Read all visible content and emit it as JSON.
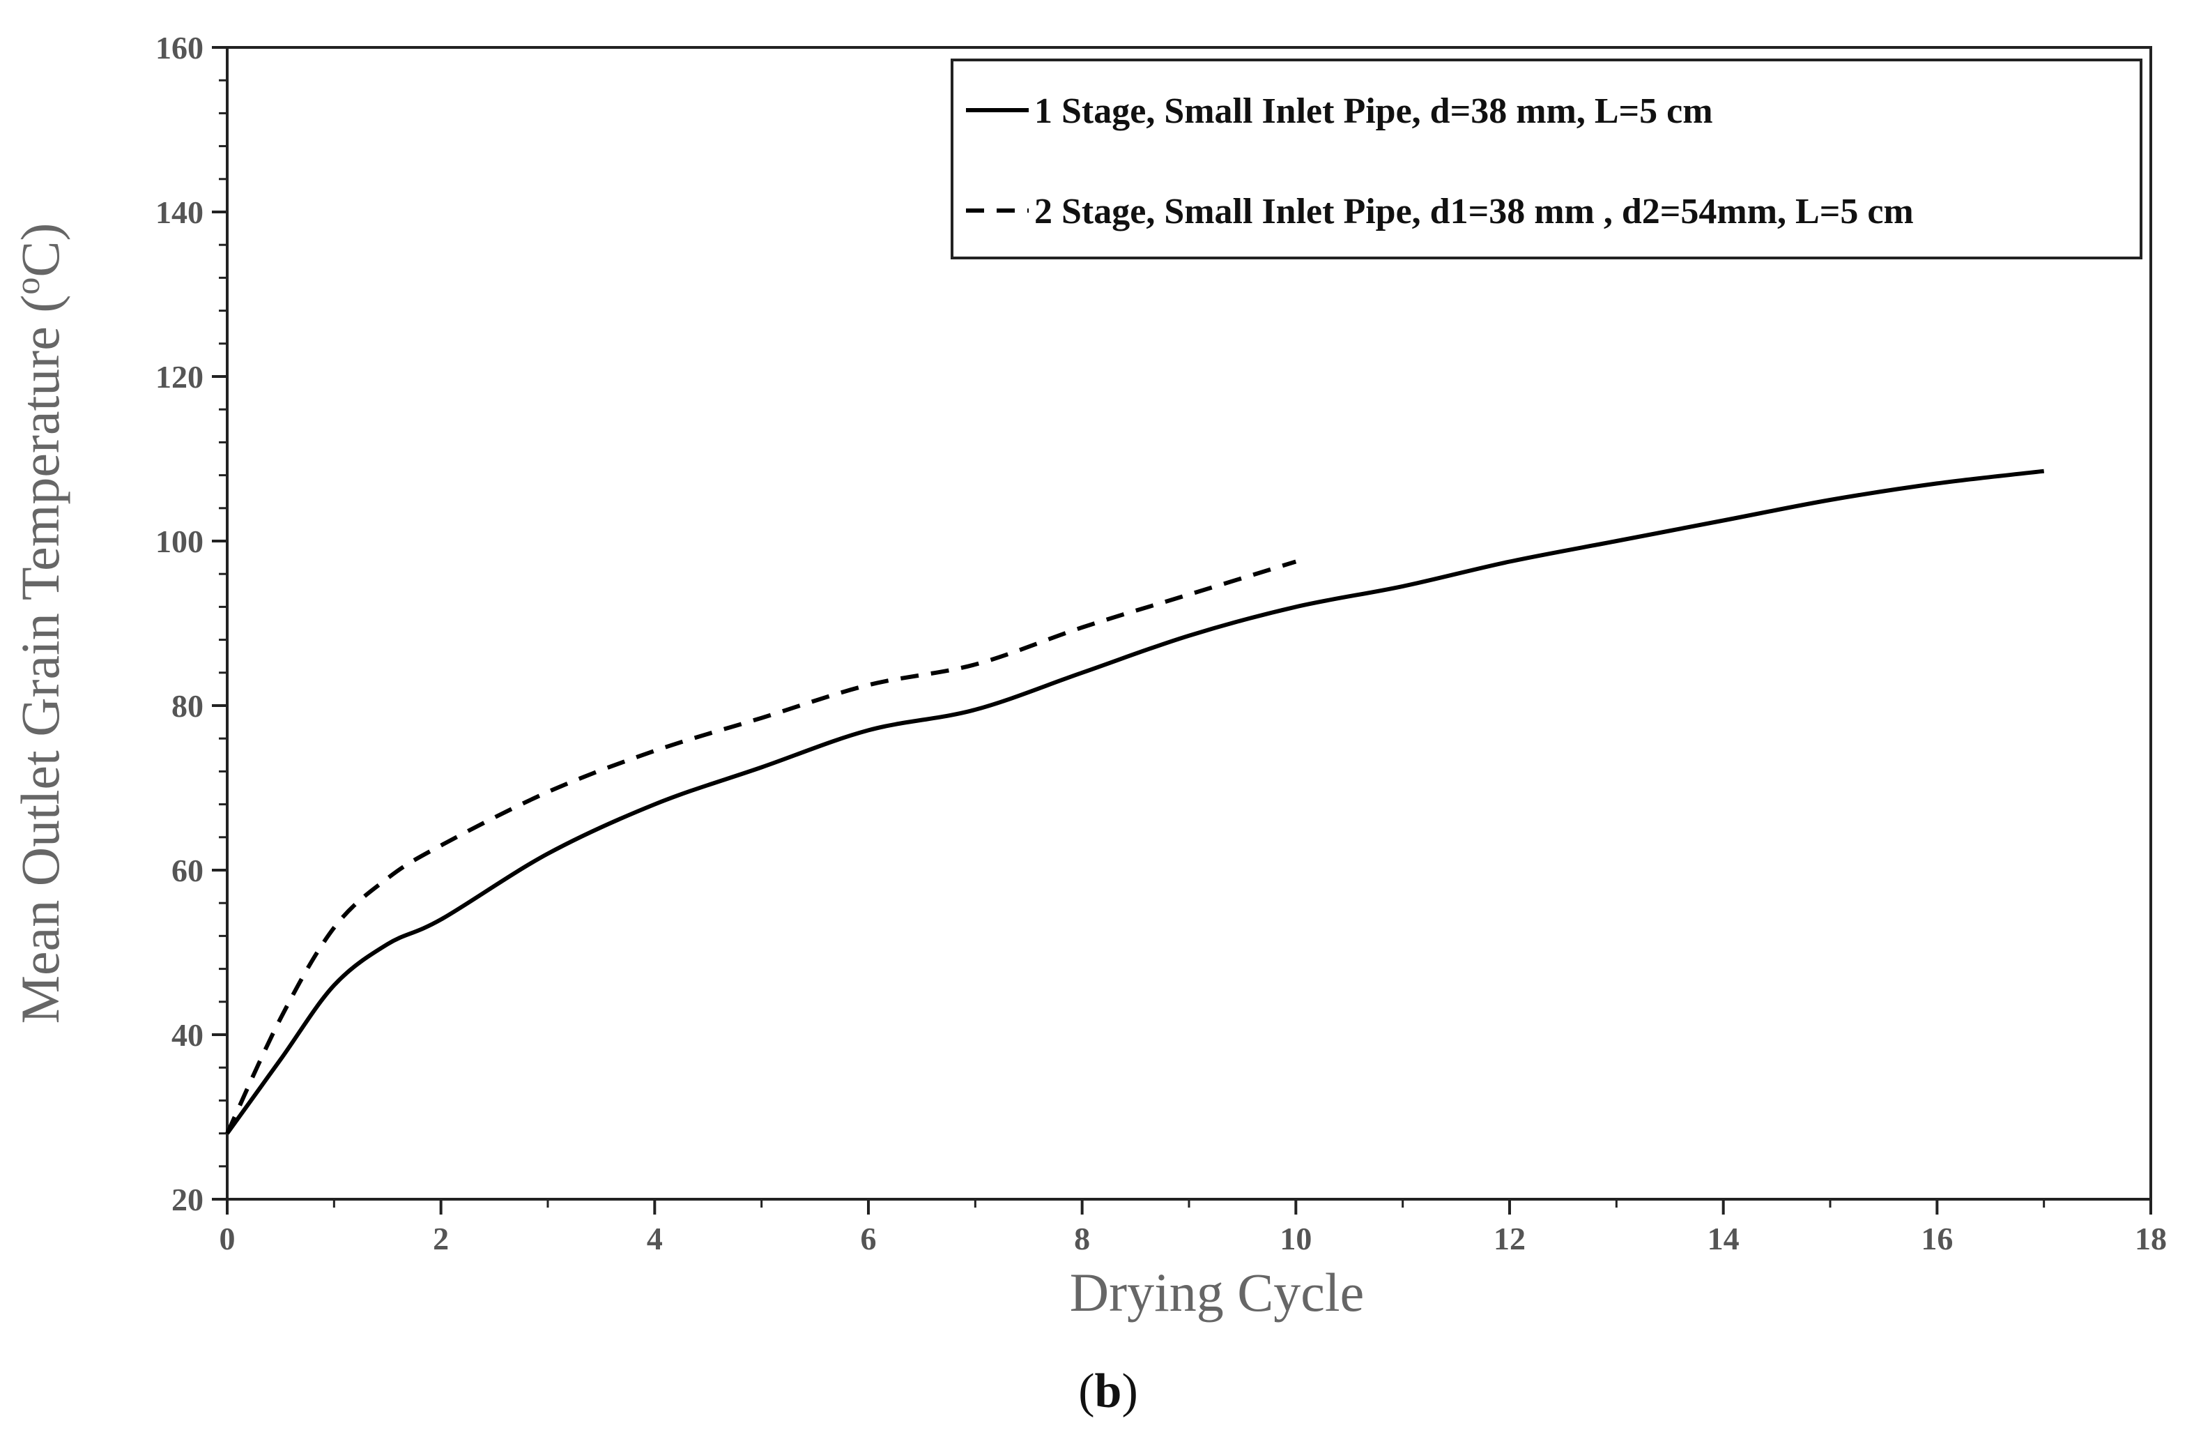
{
  "chart_data": {
    "type": "line",
    "title": "",
    "xlabel": "Drying Cycle",
    "ylabel": "Mean Outlet Grain Temperature (°C)",
    "ylabel_parts": {
      "main": "Mean Outlet Grain Temperature (",
      "sup": "o",
      "unit": "C)"
    },
    "xlim": [
      0,
      18
    ],
    "ylim": [
      20,
      160
    ],
    "x_ticks": [
      0,
      2,
      4,
      6,
      8,
      10,
      12,
      14,
      16,
      18
    ],
    "y_ticks": [
      20,
      40,
      60,
      80,
      100,
      120,
      140,
      160
    ],
    "x_tick_labels": [
      "0",
      "2",
      "4",
      "6",
      "8",
      "10",
      "12",
      "14",
      "16",
      "18"
    ],
    "y_tick_labels": [
      "20",
      "40",
      "60",
      "80",
      "100",
      "120",
      "140",
      "160"
    ],
    "grid": false,
    "legend_position": "top-right",
    "panel_label": "b",
    "series": [
      {
        "name": "1 Stage, Small Inlet Pipe, d=38 mm, L=5 cm",
        "style": "solid",
        "color": "#000000",
        "x": [
          0,
          0.5,
          1,
          1.5,
          2,
          3,
          4,
          5,
          6,
          7,
          8,
          9,
          10,
          11,
          12,
          13,
          14,
          15,
          16,
          17
        ],
        "y": [
          28,
          37,
          46,
          51,
          54,
          62,
          68,
          72.5,
          77,
          79.5,
          84,
          88.5,
          92,
          94.5,
          97.5,
          100,
          102.5,
          105,
          107,
          108.5
        ]
      },
      {
        "name": "2 Stage, Small Inlet Pipe, d1=38 mm , d2=54mm, L=5 cm",
        "style": "dashed",
        "color": "#000000",
        "x": [
          0,
          0.5,
          1,
          1.5,
          2,
          3,
          4,
          5,
          6,
          7,
          8,
          9,
          10
        ],
        "y": [
          28,
          42,
          53,
          59,
          63,
          69.5,
          74.5,
          78.5,
          82.5,
          85,
          89.5,
          93.5,
          97.5
        ]
      }
    ]
  }
}
